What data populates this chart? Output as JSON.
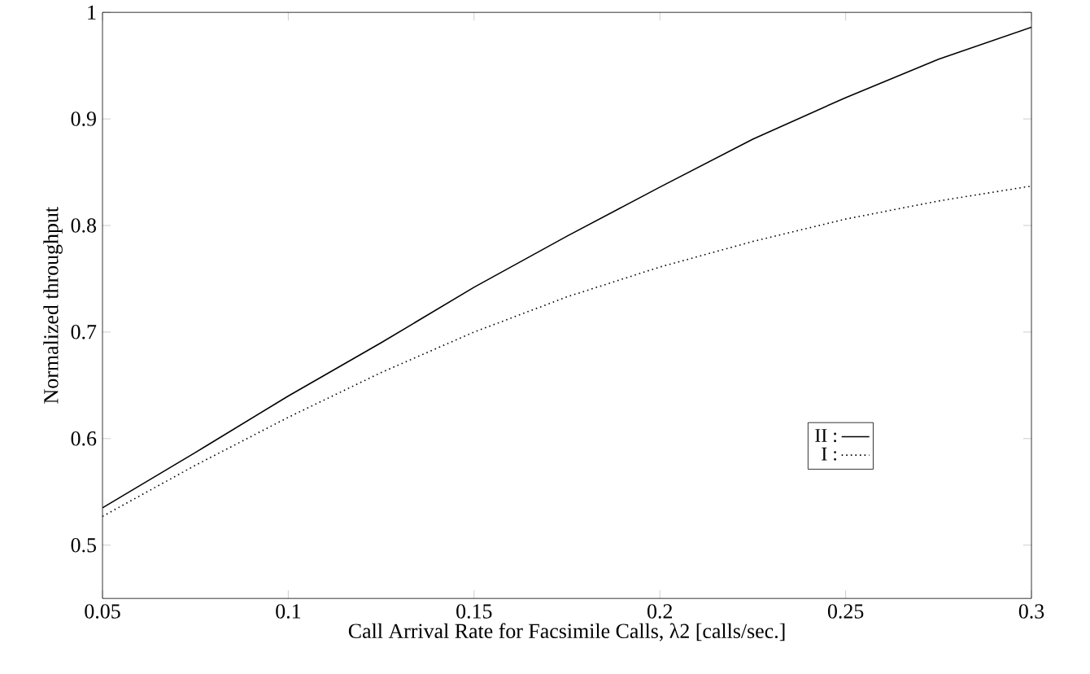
{
  "chart_data": {
    "type": "line",
    "xlabel": "Call Arrival Rate for Facsimile Calls,  λ2  [calls/sec.]",
    "ylabel": "Normalized throughput",
    "x": [
      0.05,
      0.075,
      0.1,
      0.125,
      0.15,
      0.175,
      0.2,
      0.225,
      0.25,
      0.275,
      0.3
    ],
    "series": [
      {
        "name": "II :",
        "color": "#000000",
        "line_style": "solid",
        "values": [
          0.535,
          0.587,
          0.64,
          0.69,
          0.742,
          0.79,
          0.836,
          0.881,
          0.92,
          0.956,
          0.986
        ]
      },
      {
        "name": "I :",
        "color": "#000000",
        "line_style": "dotted",
        "values": [
          0.527,
          0.575,
          0.62,
          0.662,
          0.7,
          0.733,
          0.761,
          0.785,
          0.806,
          0.823,
          0.837
        ]
      }
    ],
    "xlim": [
      0.05,
      0.3
    ],
    "ylim": [
      0.45,
      1
    ],
    "xticks": [
      0.05,
      0.1,
      0.15,
      0.2,
      0.25,
      0.3
    ],
    "yticks": [
      0.5,
      0.6,
      0.7,
      0.8,
      0.9,
      1
    ],
    "grid": false,
    "legend": "bottom right",
    "marker": "none"
  }
}
